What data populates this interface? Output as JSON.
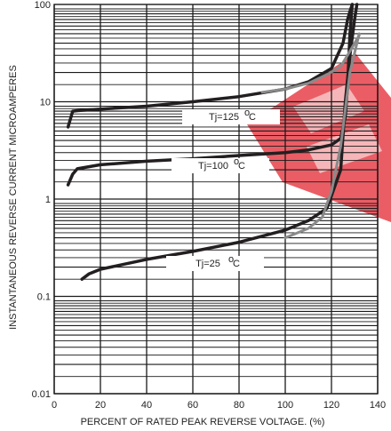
{
  "chart_data": {
    "type": "line",
    "xlabel": "PERCENT OF RATED PEAK REVERSE VOLTAGE. (%)",
    "ylabel": "INSTANTANEOUS REVERSE CURRENT MICROAMPERES",
    "x_ticks": [
      "0",
      "20",
      "40",
      "60",
      "80",
      "100",
      "120",
      "140"
    ],
    "y_ticks": [
      "0.01",
      "0.1",
      "1",
      "10",
      "100"
    ],
    "xlim": [
      0,
      140
    ],
    "ylim": [
      0.01,
      100
    ],
    "y_scale": "log",
    "grid": "log minor horizontal, major vertical every 20",
    "series": [
      {
        "name": "Tj=125°C",
        "label": "Tj=125",
        "label_unit": "C",
        "color": "#231f20",
        "x": [
          6,
          8,
          10,
          20,
          40,
          60,
          80,
          100,
          110,
          120,
          125,
          127,
          128,
          129
        ],
        "y": [
          5.5,
          8.0,
          8.1,
          8.4,
          9.0,
          10.0,
          11.3,
          13.5,
          16.0,
          22.0,
          40.0,
          70.0,
          85.0,
          100.0
        ]
      },
      {
        "name": "Tj=100°C",
        "label": "Tj=100",
        "label_unit": "C",
        "color": "#231f20",
        "x": [
          6,
          8,
          10,
          20,
          40,
          60,
          80,
          100,
          110,
          120,
          124,
          126,
          127,
          128,
          129
        ],
        "y": [
          1.4,
          1.8,
          2.05,
          2.25,
          2.45,
          2.6,
          2.8,
          3.0,
          3.2,
          3.6,
          4.2,
          7.0,
          15.0,
          50.0,
          100.0
        ]
      },
      {
        "name": "Tj=25°C",
        "label": "Tj=25",
        "label_unit": "C",
        "color": "#231f20",
        "x": [
          12,
          15,
          20,
          40,
          60,
          80,
          100,
          110,
          118,
          124,
          126,
          128,
          130,
          131
        ],
        "y": [
          0.15,
          0.17,
          0.19,
          0.24,
          0.29,
          0.36,
          0.48,
          0.6,
          0.8,
          2.0,
          10.0,
          30.0,
          70.0,
          100.0
        ]
      },
      {
        "name": "gray curve",
        "color": "#8a8a8a",
        "x": [
          100,
          110,
          116,
          120,
          124,
          128,
          132
        ],
        "y": [
          0.4,
          0.5,
          0.65,
          1.2,
          3.5,
          20.0,
          50.0
        ]
      },
      {
        "name": "gray curve upper",
        "color": "#8a8a8a",
        "x": [
          90,
          100,
          110,
          118,
          124,
          128,
          132
        ],
        "y": [
          12.5,
          13.5,
          15.5,
          19.0,
          23.0,
          33.0,
          48.0
        ]
      }
    ]
  }
}
